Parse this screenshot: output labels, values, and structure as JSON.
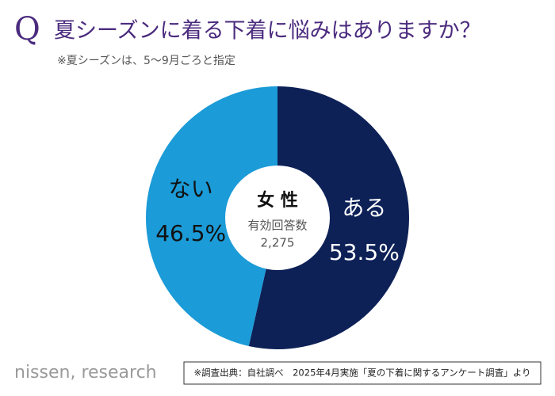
{
  "chart_data": {
    "type": "donut",
    "title_prefix": "Q",
    "title": "夏シーズンに着る下着に悩みはありますか？",
    "subtitle": "※夏シーズンは、5〜9月ごろと指定",
    "center_title": "女 性",
    "center_label": "有効回答数",
    "center_count": "2,275",
    "categories": [
      "ある",
      "ない"
    ],
    "values": [
      53.5,
      46.5
    ],
    "value_labels": [
      "53.5%",
      "46.5%"
    ],
    "colors": [
      "#0d2157",
      "#1b9bd7"
    ],
    "brand": "nissen, research",
    "source": "※調査出典：自社調べ　2025年4月実施「夏の下着に関するアンケート調査」より"
  }
}
